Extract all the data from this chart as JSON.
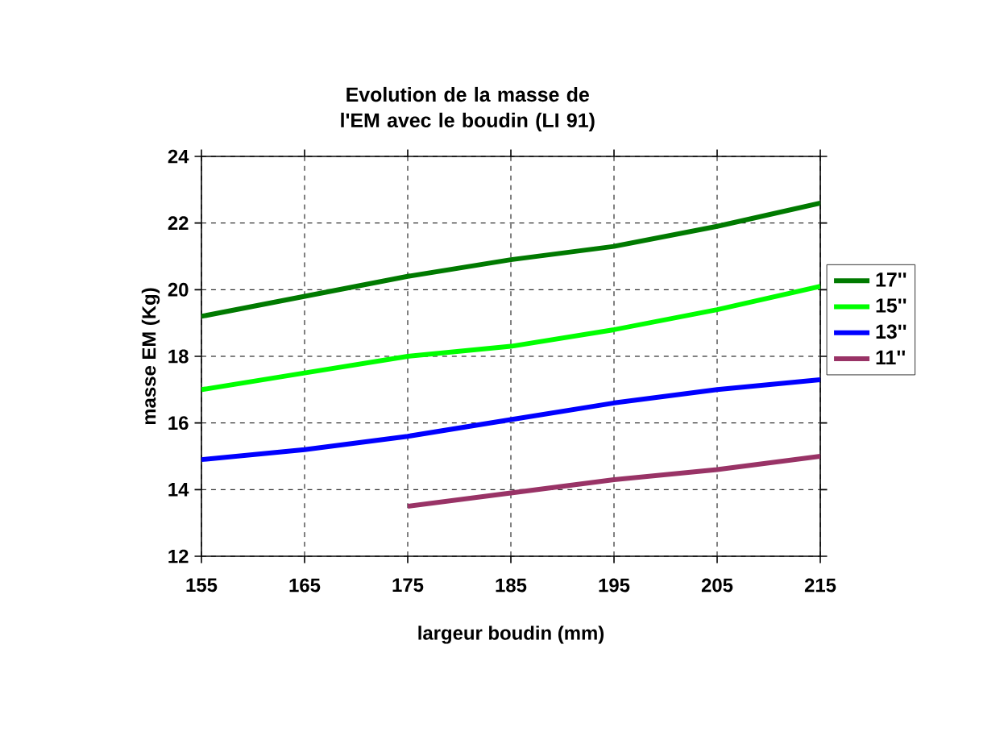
{
  "chart_data": {
    "type": "line",
    "title": "Evolution de la masse de l'EM avec le boudin (LI 91)",
    "xlabel": "largeur boudin (mm)",
    "ylabel": "masse EM (Kg)",
    "x": [
      155,
      165,
      175,
      185,
      195,
      205,
      215
    ],
    "series": [
      {
        "name": "17''",
        "color": "#007a00",
        "values": [
          19.2,
          19.8,
          20.4,
          20.9,
          21.3,
          21.9,
          22.6
        ]
      },
      {
        "name": "15''",
        "color": "#00ff00",
        "values": [
          17.0,
          17.5,
          18.0,
          18.3,
          18.8,
          19.4,
          20.1
        ]
      },
      {
        "name": "13''",
        "color": "#0000ff",
        "values": [
          14.9,
          15.2,
          15.6,
          16.1,
          16.6,
          17.0,
          17.3
        ]
      },
      {
        "name": "11''",
        "color": "#993366",
        "values": [
          null,
          null,
          13.5,
          13.9,
          14.3,
          14.6,
          15.0
        ]
      }
    ],
    "xlim": [
      155,
      215
    ],
    "xticks": [
      155,
      165,
      175,
      185,
      195,
      205,
      215
    ],
    "ylim": [
      12,
      24
    ],
    "yticks": [
      12,
      14,
      16,
      18,
      20,
      22,
      24
    ],
    "grid": true,
    "legend": "right",
    "marker": "none",
    "line_style": "solid"
  }
}
